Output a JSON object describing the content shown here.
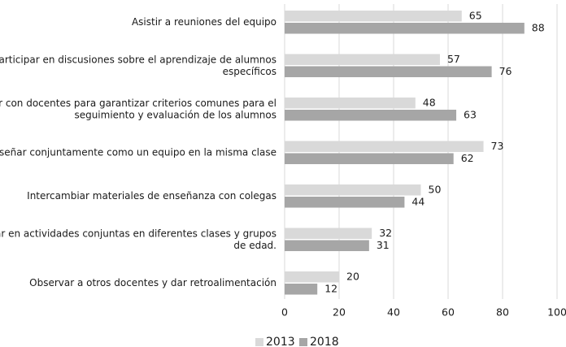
{
  "chart_data": {
    "type": "bar",
    "orientation": "horizontal",
    "categories": [
      [
        "Asistir a reuniones del equipo"
      ],
      [
        "Participar en discusiones sobre el aprendizaje de alumnos",
        "específicos"
      ],
      [
        "Trabajar con docentes para garantizar criterios comunes para el",
        "seguimiento y evaluación de los alumnos"
      ],
      [
        "Enseñar conjuntamente como un equipo en la misma clase"
      ],
      [
        "Intercambiar materiales de enseñanza con colegas"
      ],
      [
        "Participar en actividades conjuntas en diferentes clases y grupos",
        "de edad."
      ],
      [
        "Observar a otros docentes y dar retroalimentación"
      ]
    ],
    "series": [
      {
        "name": "2013",
        "color": "#d9d9d9",
        "values": [
          65,
          57,
          48,
          73,
          50,
          32,
          20
        ]
      },
      {
        "name": "2018",
        "color": "#a6a6a6",
        "values": [
          88,
          76,
          63,
          62,
          44,
          31,
          12
        ]
      }
    ],
    "xlim": [
      0,
      100
    ],
    "xticks": [
      "0",
      "20",
      "40",
      "60",
      "80",
      "100"
    ],
    "grid": true,
    "legend_position": "bottom-center",
    "title": "",
    "xlabel": "",
    "ylabel": ""
  }
}
